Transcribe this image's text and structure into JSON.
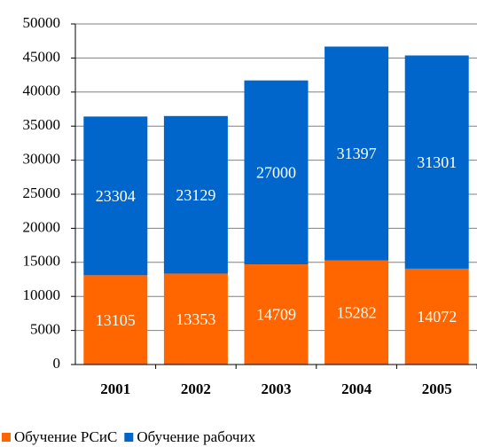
{
  "chart_data": {
    "type": "stacked_bar",
    "categories": [
      "2001",
      "2002",
      "2003",
      "2004",
      "2005"
    ],
    "series": [
      {
        "name": "Обучение РСиС",
        "color": "#ff6600",
        "values": [
          13105,
          13353,
          14709,
          15282,
          14072
        ]
      },
      {
        "name": "Обучение рабочих",
        "color": "#0066cc",
        "values": [
          23304,
          23129,
          27000,
          31397,
          31301
        ]
      }
    ],
    "ylim": [
      0,
      50000
    ],
    "yticks": [
      0,
      5000,
      10000,
      15000,
      20000,
      25000,
      30000,
      35000,
      40000,
      45000,
      50000
    ],
    "grid": true,
    "legend": "bottom"
  }
}
